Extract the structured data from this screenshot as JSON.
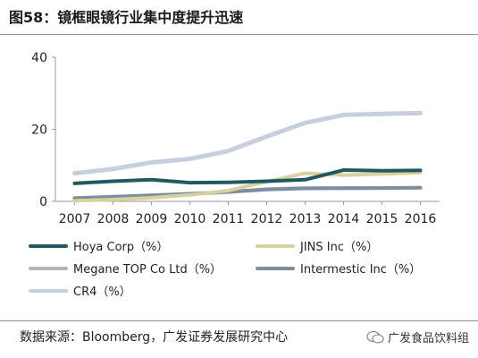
{
  "title": "图58：镜框眼镜行业集中度提升迅速",
  "source": "数据来源：Bloomberg，广发证券发展研究中心",
  "brand": "广发食品饮料组",
  "chart_data": {
    "type": "line",
    "categories": [
      "2007",
      "2008",
      "2009",
      "2010",
      "2011",
      "2012",
      "2013",
      "2014",
      "2015",
      "2016"
    ],
    "ylim": [
      0,
      40
    ],
    "yticks": [
      "0",
      "20",
      "40"
    ],
    "grid": false,
    "legend_position": "bottom",
    "series": [
      {
        "name": "Hoya Corp（%）",
        "color": "#1f5a63",
        "values": [
          5.0,
          5.6,
          6.0,
          5.2,
          5.3,
          5.6,
          6.0,
          8.7,
          8.5,
          8.6
        ]
      },
      {
        "name": "JINS Inc（%）",
        "color": "#d8d29a",
        "values": [
          0.2,
          0.5,
          1.0,
          1.8,
          3.0,
          5.5,
          7.8,
          7.3,
          7.6,
          8.0
        ]
      },
      {
        "name": "Megane TOP Co Ltd（%）",
        "color": "#b4b4b4",
        "values": [
          0.7,
          1.2,
          1.7,
          2.0,
          2.6,
          3.4,
          3.7,
          3.6,
          3.7,
          3.8
        ]
      },
      {
        "name": "Intermestic Inc（%）",
        "color": "#7b8fa0",
        "values": [
          0.9,
          1.3,
          1.7,
          2.1,
          2.6,
          3.3,
          3.6,
          3.7,
          3.7,
          3.8
        ]
      },
      {
        "name": "CR4（%）",
        "color": "#c7cfdf",
        "values": [
          7.8,
          9.0,
          10.8,
          11.8,
          14.0,
          18.0,
          21.8,
          24.0,
          24.3,
          24.5
        ]
      }
    ]
  }
}
